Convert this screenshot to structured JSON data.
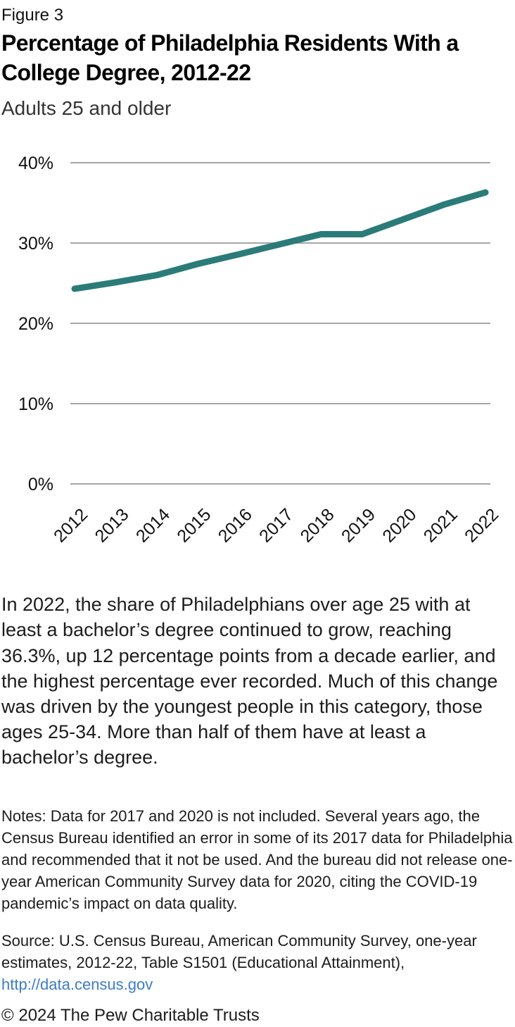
{
  "figure_label": "Figure 3",
  "title": "Percentage of Philadelphia Residents With a College Degree, 2012-22",
  "subtitle": "Adults 25 and older",
  "colors": {
    "line": "#2b7c79",
    "gridline": "#a6a6a6",
    "axis_text": "#111111",
    "link": "#3e7cc7"
  },
  "chart_data": {
    "type": "line",
    "x": [
      "2012",
      "2013",
      "2014",
      "2015",
      "2016",
      "2017",
      "2018",
      "2019",
      "2020",
      "2021",
      "2022"
    ],
    "values": [
      24.3,
      25.1,
      26.0,
      27.4,
      28.6,
      null,
      31.1,
      31.1,
      null,
      34.8,
      36.3
    ],
    "missing_years": [
      "2017",
      "2020"
    ],
    "title": "Percentage of Philadelphia Residents With a College Degree, 2012-22",
    "subtitle": "Adults 25 and older",
    "xlabel": "",
    "ylabel": "",
    "yticks": [
      0,
      10,
      20,
      30,
      40
    ],
    "ytick_suffix": "%",
    "ylim": [
      0,
      43
    ],
    "grid": "horizontal-only",
    "legend": "none",
    "line_color": "#2b7c79",
    "line_width": 9
  },
  "body_paragraph": "In 2022, the share of Philadelphians over age 25 with at least a bachelor’s degree continued to grow, reaching 36.3%, up 12 percentage points from a decade earlier, and the highest percentage ever recorded. Much of this change was driven by the youngest people in this category, those ages 25-34. More than half of them have at least a bachelor’s degree.",
  "notes": "Notes: Data for 2017 and 2020 is not included. Several years ago, the Census Bureau identified an error in some of its 2017 data for Philadelphia and recommended that it not be used. And the bureau did not release one-year American Community Survey data for 2020, citing the COVID-19 pandemic’s impact on data quality.",
  "source": {
    "label": "Source: U.S. Census Bureau, American Community Survey, one-year estimates, 2012-22, Table S1501 (Educational Attainment), ",
    "link_text": "http://data.census.gov"
  },
  "copyright": "© 2024 The Pew Charitable Trusts"
}
